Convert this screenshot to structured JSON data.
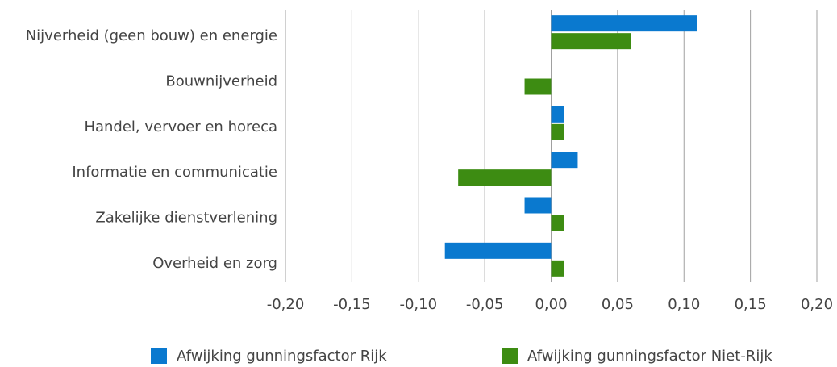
{
  "chart_data": {
    "type": "barh",
    "categories": [
      "Nijverheid (geen bouw) en energie",
      "Bouwnijverheid",
      "Handel, vervoer en horeca",
      "Informatie en communicatie",
      "Zakelijke dienstverlening",
      "Overheid en zorg"
    ],
    "series": [
      {
        "name": "Afwijking gunningsfactor Rijk",
        "color": "#0a79cf",
        "values": [
          0.11,
          0,
          0.01,
          0.02,
          -0.02,
          -0.08
        ]
      },
      {
        "name": "Afwijking gunningsfactor Niet-Rijk",
        "color": "#3d8c12",
        "values": [
          0.06,
          -0.02,
          0.01,
          -0.07,
          0.01,
          0.01
        ]
      }
    ],
    "xlim": [
      -0.2,
      0.2
    ],
    "xticks": [
      {
        "value": -0.2,
        "label": "-0,20"
      },
      {
        "value": -0.15,
        "label": "-0,15"
      },
      {
        "value": -0.1,
        "label": "-0,10"
      },
      {
        "value": -0.05,
        "label": "-0,05"
      },
      {
        "value": 0,
        "label": "0,00"
      },
      {
        "value": 0.05,
        "label": "0,05"
      },
      {
        "value": 0.1,
        "label": "0,10"
      },
      {
        "value": 0.15,
        "label": "0,15"
      },
      {
        "value": 0.2,
        "label": "0,20"
      }
    ],
    "grid": true,
    "legend": "bottom"
  }
}
